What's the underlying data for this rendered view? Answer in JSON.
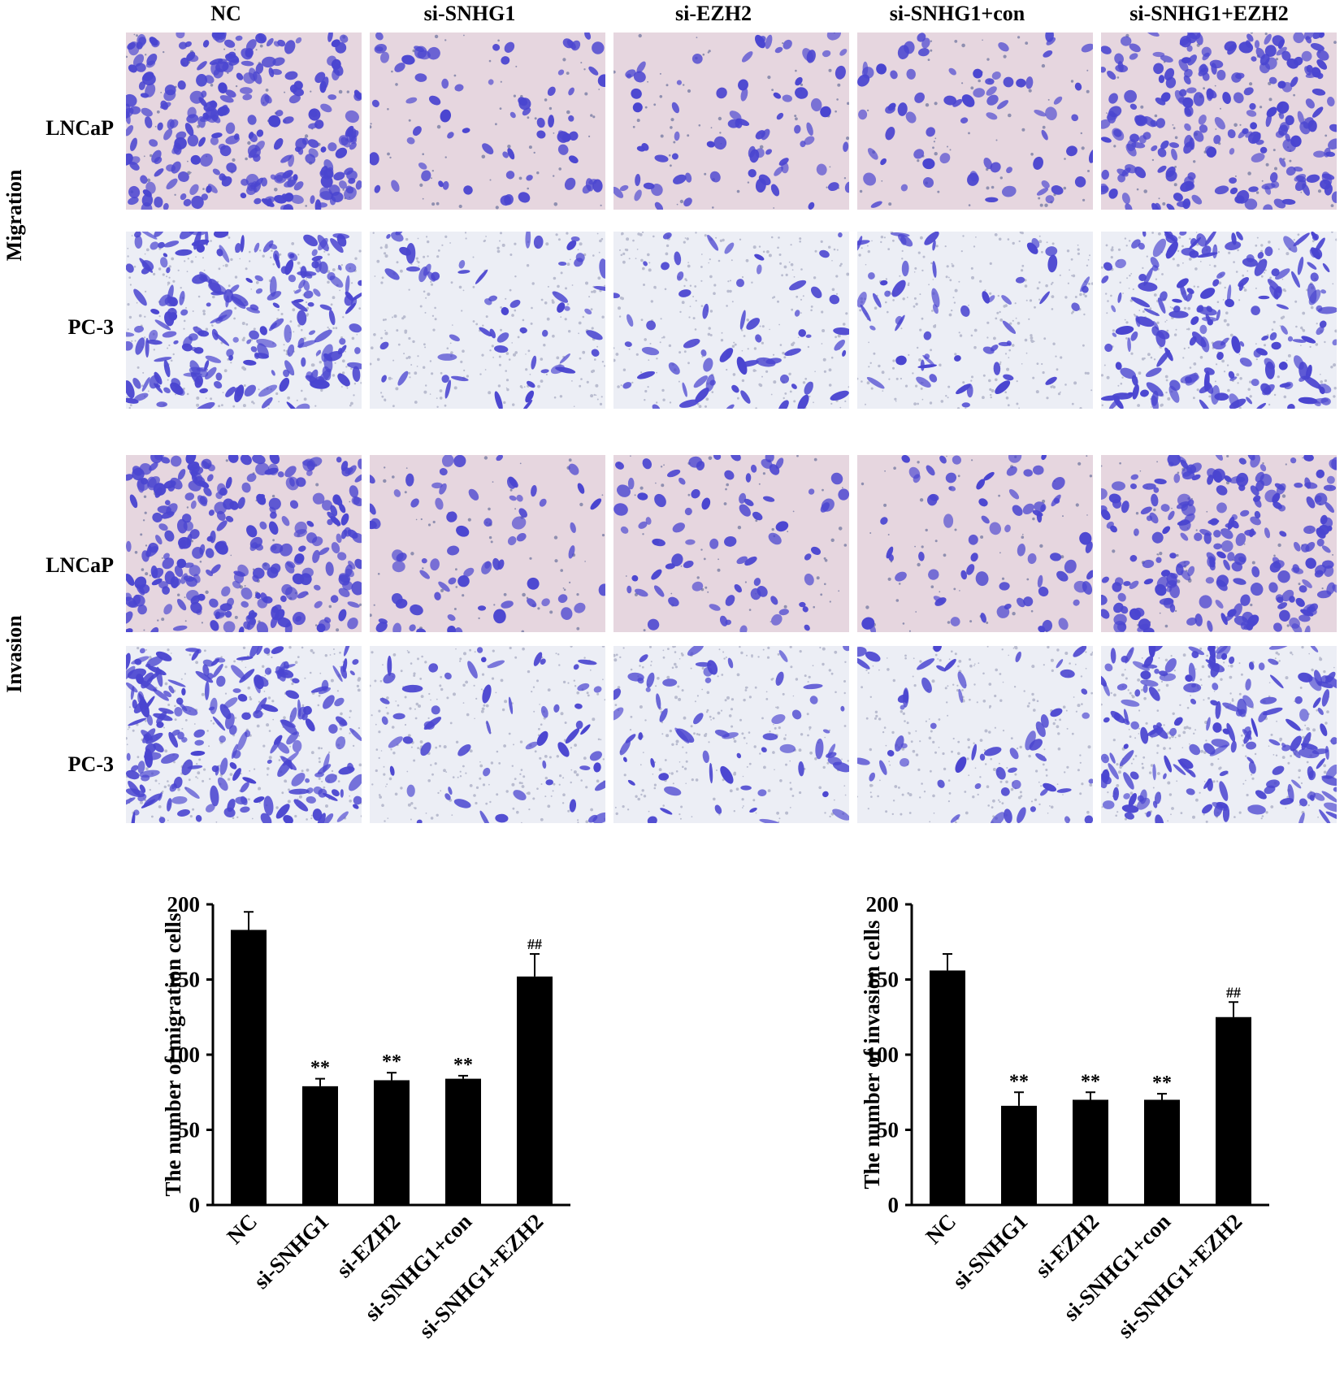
{
  "micrograph_grid": {
    "columns": [
      "NC",
      "si-SNHG1",
      "si-EZH2",
      "si-SNHG1+con",
      "si-SNHG1+EZH2"
    ],
    "sections": [
      {
        "label": "Migration",
        "rows": [
          "LNCaP",
          "PC-3"
        ]
      },
      {
        "label": "Invasion",
        "rows": [
          "LNCaP",
          "PC-3"
        ]
      }
    ],
    "stain_color": "#4a45d0",
    "lncap_background": "#e6d6df",
    "pc3_background": "#eceef5"
  },
  "chart_data": [
    {
      "type": "bar",
      "ylabel": "The number of migration cells",
      "categories": [
        "NC",
        "si-SNHG1",
        "si-EZH2",
        "si-SNHG1+con",
        "si-SNHG1+EZH2"
      ],
      "values": [
        183,
        79,
        83,
        84,
        152
      ],
      "errors": [
        12,
        5,
        5,
        2,
        15
      ],
      "annotations": [
        "",
        "**",
        "**",
        "**",
        "##"
      ],
      "ylim": [
        0,
        200
      ],
      "yticks": [
        "0",
        "50",
        "100",
        "150",
        "200"
      ],
      "bar_color": "#000000"
    },
    {
      "type": "bar",
      "ylabel": "The number of invasion cells",
      "categories": [
        "NC",
        "si-SNHG1",
        "si-EZH2",
        "si-SNHG1+con",
        "si-SNHG1+EZH2"
      ],
      "values": [
        156,
        66,
        70,
        70,
        125
      ],
      "errors": [
        11,
        9,
        5,
        4,
        10
      ],
      "annotations": [
        "",
        "**",
        "**",
        "**",
        "##"
      ],
      "ylim": [
        0,
        200
      ],
      "yticks": [
        "0",
        "50",
        "100",
        "150",
        "200"
      ],
      "bar_color": "#000000"
    }
  ]
}
